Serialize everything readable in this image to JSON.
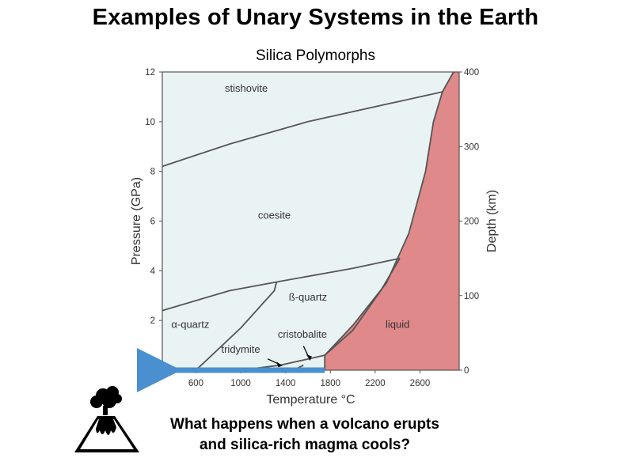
{
  "slide": {
    "title": "Examples of Unary Systems in the Earth",
    "question_line1": "What happens when a volcano erupts",
    "question_line2": "and silica-rich magma cools?",
    "volcano_icon": "volcano-icon"
  },
  "chart_data": {
    "type": "phase-diagram",
    "title": "Silica Polymorphs",
    "xlabel": "Temperature °C",
    "ylabel": "Pressure (GPa)",
    "y2label": "Depth (km)",
    "xlim": [
      300,
      2950
    ],
    "ylim": [
      0,
      12
    ],
    "y2lim": [
      0,
      400
    ],
    "x_ticks": [
      "600",
      "1000",
      "1400",
      "1800",
      "2200",
      "2600"
    ],
    "y_ticks": [
      "0",
      "2",
      "4",
      "6",
      "8",
      "10",
      "12"
    ],
    "y2_ticks": [
      "0",
      "100",
      "200",
      "300",
      "400"
    ],
    "regions": [
      {
        "name": "stishovite",
        "label_at": [
          1050,
          11.2
        ]
      },
      {
        "name": "coesite",
        "label_at": [
          1300,
          6.1
        ]
      },
      {
        "name": "ß-quartz",
        "label_at": [
          1600,
          2.8
        ]
      },
      {
        "name": "α-quartz",
        "label_at": [
          550,
          1.7
        ]
      },
      {
        "name": "cristobalite",
        "label_at": [
          1550,
          1.3
        ]
      },
      {
        "name": "tridymite",
        "label_at": [
          1000,
          0.7
        ]
      },
      {
        "name": "liquid",
        "label_at": [
          2400,
          1.7
        ]
      }
    ],
    "boundaries": [
      {
        "name": "stishovite-coesite",
        "points": [
          [
            300,
            8.2
          ],
          [
            900,
            9.1
          ],
          [
            1600,
            10.0
          ],
          [
            2300,
            10.7
          ],
          [
            2800,
            11.2
          ]
        ]
      },
      {
        "name": "coesite-quartz",
        "points": [
          [
            300,
            2.4
          ],
          [
            900,
            3.2
          ],
          [
            1320,
            3.55
          ],
          [
            2000,
            4.1
          ],
          [
            2420,
            4.5
          ]
        ]
      },
      {
        "name": "alpha-beta-quartz",
        "points": [
          [
            600,
            0.0
          ],
          [
            1000,
            1.7
          ],
          [
            1300,
            3.2
          ],
          [
            1320,
            3.55
          ]
        ]
      },
      {
        "name": "beta-quartz-liquid",
        "points": [
          [
            1750,
            0.6
          ],
          [
            2000,
            1.6
          ],
          [
            2250,
            3.2
          ],
          [
            2420,
            4.5
          ]
        ]
      },
      {
        "name": "melting-curve",
        "points": [
          [
            1750,
            0.6
          ],
          [
            2000,
            1.8
          ],
          [
            2300,
            3.5
          ],
          [
            2500,
            5.5
          ],
          [
            2650,
            8.0
          ],
          [
            2720,
            10.0
          ],
          [
            2800,
            11.2
          ],
          [
            2900,
            12.0
          ]
        ]
      },
      {
        "name": "tridymite-quartz",
        "points": [
          [
            1000,
            0.0
          ],
          [
            1350,
            0.2
          ],
          [
            1600,
            0.45
          ],
          [
            1750,
            0.6
          ]
        ]
      },
      {
        "name": "cristobalite-tridymite",
        "points": [
          [
            1470,
            0.0
          ],
          [
            1560,
            0.2
          ]
        ]
      }
    ],
    "arrow": {
      "from_x": 1750,
      "to_x": 300,
      "y": 0,
      "color": "#4a8fcf"
    },
    "colors": {
      "liquid": "#e0898a",
      "solid": "#eaf3f4",
      "line": "#555555"
    }
  }
}
